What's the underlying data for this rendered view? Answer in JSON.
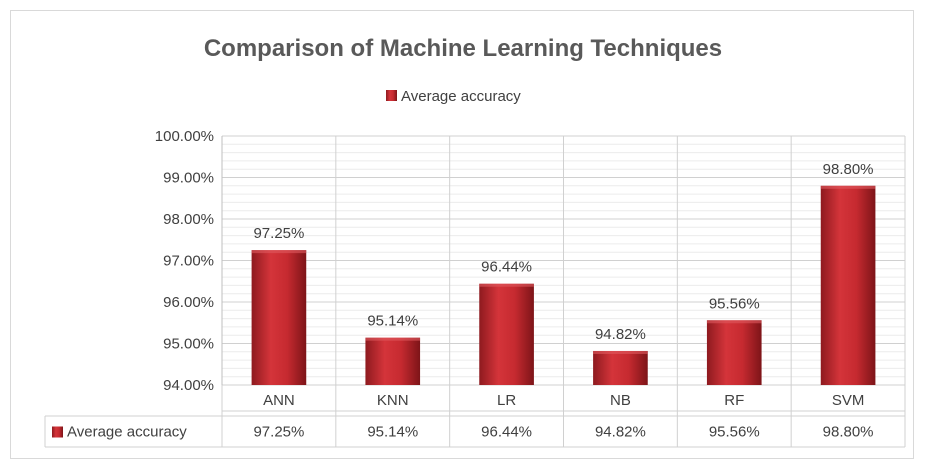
{
  "chart_data": {
    "type": "bar",
    "title": "Comparison of Machine Learning Techniques",
    "categories": [
      "ANN",
      "KNN",
      "LR",
      "NB",
      "RF",
      "SVM"
    ],
    "series": [
      {
        "name": "Average accuracy",
        "values": [
          97.25,
          95.14,
          96.44,
          94.82,
          95.56,
          98.8
        ],
        "labels": [
          "97.25%",
          "95.14%",
          "96.44%",
          "94.82%",
          "95.56%",
          "98.80%"
        ],
        "color": "#c0272d"
      }
    ],
    "ylim": [
      94.0,
      100.0
    ],
    "yticks": [
      94.0,
      95.0,
      96.0,
      97.0,
      98.0,
      99.0,
      100.0
    ],
    "ytick_labels": [
      "94.00%",
      "95.00%",
      "96.00%",
      "97.00%",
      "98.00%",
      "99.00%",
      "100.00%"
    ],
    "grid": true,
    "legend_position": "top",
    "data_table": true
  }
}
